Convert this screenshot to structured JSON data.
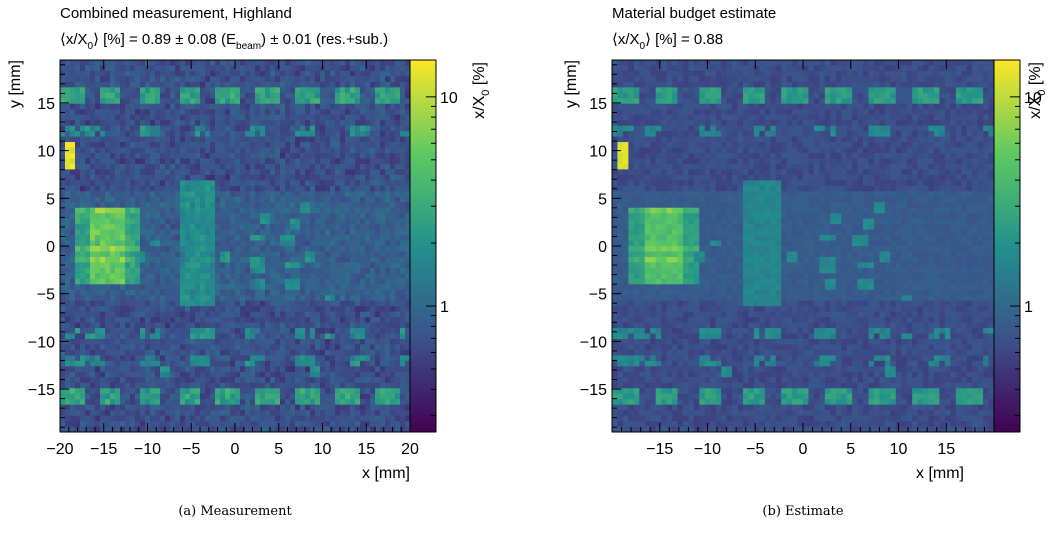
{
  "chart_data": [
    {
      "type": "heatmap",
      "title": "Combined measurement, Highland",
      "subtitle": {
        "p1": "⟨x/X",
        "p1_sub": "0",
        "p2": "⟩ [%] = 0.89 ± 0.08 (E",
        "p2_sub": "beam",
        "p3": ") ± 0.01 (res.+sub.)"
      },
      "xlabel": "x [mm]",
      "ylabel": "y [mm]",
      "xlim": [
        -20,
        20
      ],
      "ylim": [
        -19.5,
        19.5
      ],
      "xticks": [
        -20,
        -15,
        -10,
        -5,
        0,
        5,
        10,
        15,
        20
      ],
      "xticklabels": [
        "−20",
        "−15",
        "−10",
        "−5",
        "0",
        "5",
        "10",
        "15",
        "20"
      ],
      "yticks": [
        -15,
        -10,
        -5,
        0,
        5,
        10,
        15
      ],
      "yticklabels": [
        "−15",
        "−10",
        "−5",
        "0",
        "5",
        "10",
        "15"
      ],
      "colorbar": {
        "label_main": "x/X",
        "label_sub": "0",
        "label_unit": " [%]",
        "scale": "log",
        "ticks": [
          1,
          10
        ],
        "ticklabels": [
          "1",
          "10"
        ],
        "range": [
          0.25,
          15
        ]
      },
      "caption": "(a)  Measurement"
    },
    {
      "type": "heatmap",
      "title": "Material budget estimate",
      "subtitle": {
        "p1": "⟨x/X",
        "p1_sub": "0",
        "p2": "⟩ [%] = 0.88"
      },
      "xlabel": "x [mm]",
      "ylabel": "y [mm]",
      "xlim": [
        -20,
        20
      ],
      "ylim": [
        -19.5,
        19.5
      ],
      "xticks": [
        -15,
        -10,
        -5,
        0,
        5,
        10,
        15
      ],
      "xticklabels": [
        "−15",
        "−10",
        "−5",
        "0",
        "5",
        "10",
        "15"
      ],
      "yticks": [
        -15,
        -10,
        -5,
        0,
        5,
        10,
        15
      ],
      "yticklabels": [
        "−15",
        "−10",
        "−5",
        "0",
        "5",
        "10",
        "15"
      ],
      "colorbar": {
        "label_main": "x/X",
        "label_sub": "0",
        "label_unit": " [%]",
        "scale": "log",
        "ticks": [
          1,
          10
        ],
        "ticklabels": [
          "1",
          "10"
        ],
        "range": [
          0.25,
          15
        ]
      },
      "caption": "(b)  Estimate"
    }
  ],
  "colors": {
    "viridis": [
      "#440154",
      "#3b528b",
      "#21918c",
      "#5ec962",
      "#fde725"
    ],
    "background_cell": "#2c4c82"
  }
}
